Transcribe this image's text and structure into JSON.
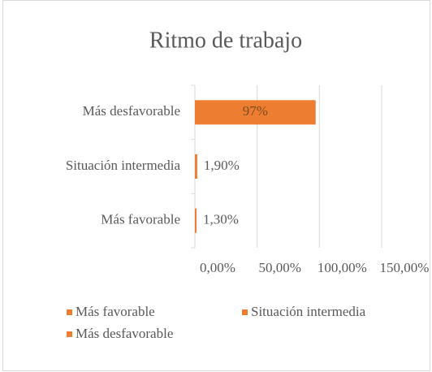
{
  "chart_data": {
    "type": "bar",
    "orientation": "horizontal",
    "title": "Ritmo de trabajo",
    "categories": [
      "Más desfavorable",
      "Situación intermedia",
      "Más favorable"
    ],
    "series": [
      {
        "name": "Más favorable",
        "color": "#ED7D31",
        "values": [
          null,
          null,
          1.3
        ],
        "value_labels": [
          null,
          null,
          "1,30%"
        ]
      },
      {
        "name": "Situación intermedia",
        "color": "#ED7D31",
        "values": [
          null,
          1.9,
          null
        ],
        "value_labels": [
          null,
          "1,90%",
          null
        ]
      },
      {
        "name": "Más desfavorable",
        "color": "#ED7D31",
        "values": [
          97,
          null,
          null
        ],
        "value_labels": [
          "97%",
          null,
          null
        ]
      }
    ],
    "xlim": [
      0,
      150
    ],
    "xticks": [
      {
        "value": 0,
        "label": "0,00%"
      },
      {
        "value": 50,
        "label": "50,00%"
      },
      {
        "value": 100,
        "label": "100,00%"
      },
      {
        "value": 150,
        "label": "150,00%"
      }
    ],
    "grid": true
  }
}
